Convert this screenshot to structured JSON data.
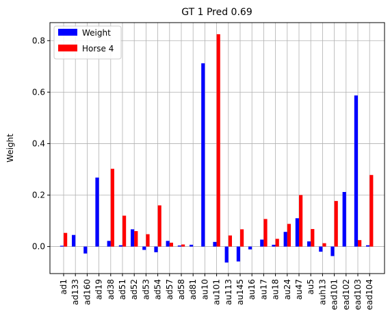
{
  "chart_data": {
    "type": "bar",
    "title": "GT 1 Pred 0.69",
    "xlabel": "",
    "ylabel": "Weight",
    "ylim": [
      -0.105,
      0.87
    ],
    "yticks": [
      0.0,
      0.2,
      0.4,
      0.6,
      0.8
    ],
    "ytick_labels": [
      "0.0",
      "0.2",
      "0.4",
      "0.6",
      "0.8"
    ],
    "grid": true,
    "legend_position": "top-left",
    "categories": [
      "ad1",
      "ad133",
      "ad160",
      "ad19",
      "ad38",
      "ad51",
      "ad52",
      "ad53",
      "ad54",
      "ad57",
      "ad58",
      "ad81",
      "au10",
      "au101",
      "au113",
      "au145",
      "au16",
      "au17",
      "au18",
      "au24",
      "au47",
      "au5",
      "auh13",
      "ead101",
      "ead102",
      "ead103",
      "ead104"
    ],
    "series": [
      {
        "name": "Weight",
        "color": "#0000ff",
        "values": [
          0.003,
          0.045,
          -0.027,
          0.268,
          0.022,
          0.005,
          0.067,
          -0.013,
          -0.022,
          0.022,
          0.004,
          0.007,
          0.712,
          0.018,
          -0.062,
          -0.058,
          -0.011,
          0.027,
          0.007,
          0.057,
          0.11,
          0.02,
          -0.02,
          -0.037,
          0.212,
          0.587,
          0.005
        ]
      },
      {
        "name": "Horse 4",
        "color": "#ff0000",
        "values": [
          0.053,
          0.0,
          0.0,
          0.0,
          0.302,
          0.12,
          0.06,
          0.048,
          0.16,
          0.015,
          0.008,
          0.0,
          0.0,
          0.825,
          0.043,
          0.067,
          0.0,
          0.107,
          0.03,
          0.088,
          0.2,
          0.068,
          0.013,
          0.177,
          0.0,
          0.025,
          0.278
        ]
      }
    ]
  }
}
